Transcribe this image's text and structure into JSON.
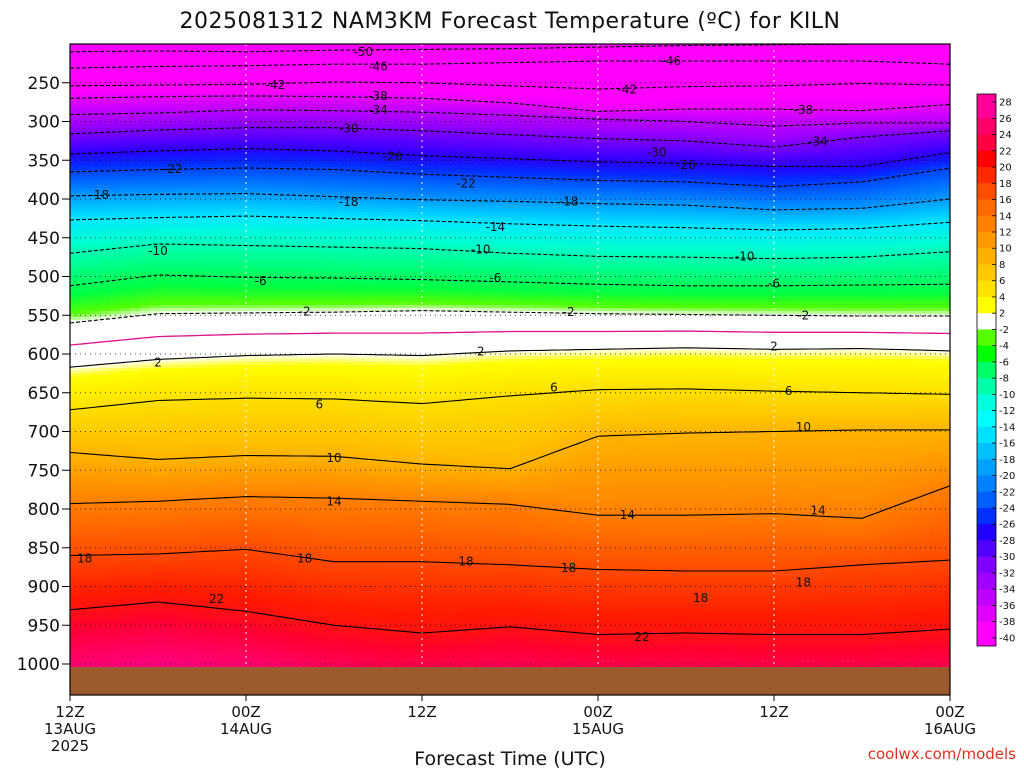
{
  "chart_data": {
    "type": "heatmap",
    "title": "2025081312 NAM3KM Forecast Temperature (ºC) for KILN",
    "xlabel": "Forecast Time (UTC)",
    "ylabel": "",
    "x_ticks": [
      {
        "h": 0,
        "l1": "12Z",
        "l2": "13AUG",
        "l3": "2025"
      },
      {
        "h": 12,
        "l1": "00Z",
        "l2": "14AUG",
        "l3": ""
      },
      {
        "h": 24,
        "l1": "12Z",
        "l2": "",
        "l3": ""
      },
      {
        "h": 36,
        "l1": "00Z",
        "l2": "15AUG",
        "l3": ""
      },
      {
        "h": 48,
        "l1": "12Z",
        "l2": "",
        "l3": ""
      },
      {
        "h": 60,
        "l1": "00Z",
        "l2": "16AUG",
        "l3": ""
      }
    ],
    "xlim_hours": [
      0,
      60
    ],
    "y_ticks": [
      250,
      300,
      350,
      400,
      450,
      500,
      550,
      600,
      650,
      700,
      750,
      800,
      850,
      900,
      950,
      1000
    ],
    "y_units": "hPa",
    "ylim_hpa": [
      200,
      1040
    ],
    "ground_top_hpa": 970,
    "colorbar_ticks": [
      28,
      26,
      24,
      22,
      20,
      18,
      16,
      14,
      12,
      10,
      8,
      6,
      4,
      2,
      -2,
      -4,
      -6,
      -8,
      -10,
      -12,
      -14,
      -16,
      -18,
      -20,
      -22,
      -24,
      -26,
      -28,
      -30,
      -32,
      -34,
      -36,
      -38,
      -40
    ],
    "colorbar_colors": [
      "#ff0099",
      "#ff0066",
      "#ff0040",
      "#ff0000",
      "#ff2a00",
      "#ff4d00",
      "#ff6a00",
      "#ff8000",
      "#ff9900",
      "#ffb000",
      "#ffc800",
      "#ffe000",
      "#ffff00",
      "#ffffff",
      "#55ff00",
      "#00ff00",
      "#00ff66",
      "#00ffaa",
      "#00ffdd",
      "#00ffff",
      "#00e0ff",
      "#00c0ff",
      "#00a0ff",
      "#0080ff",
      "#0060ff",
      "#0030ff",
      "#2000ff",
      "#5000ff",
      "#8000ff",
      "#a000ff",
      "#c000ff",
      "#e000ff",
      "#ff00ff"
    ],
    "time_hours": [
      0,
      6,
      12,
      18,
      24,
      30,
      36,
      42,
      48,
      54,
      60
    ],
    "isotherms": [
      {
        "t": -50,
        "p": [
          210,
          209,
          210,
          208,
          207,
          206,
          204,
          202,
          201,
          200,
          200
        ]
      },
      {
        "t": -46,
        "p": [
          231,
          229,
          228,
          226,
          226,
          224,
          222,
          222,
          222,
          222,
          226
        ]
      },
      {
        "t": -42,
        "p": [
          254,
          253,
          252,
          249,
          250,
          254,
          258,
          255,
          254,
          251,
          253
        ]
      },
      {
        "t": -38,
        "p": [
          270,
          268,
          267,
          268,
          270,
          276,
          287,
          284,
          284,
          286,
          278
        ]
      },
      {
        "t": -34,
        "p": [
          291,
          289,
          285,
          286,
          288,
          292,
          297,
          300,
          306,
          302,
          302
        ]
      },
      {
        "t": -30,
        "p": [
          316,
          311,
          308,
          308,
          312,
          317,
          322,
          325,
          333,
          320,
          312
        ]
      },
      {
        "t": -26,
        "p": [
          342,
          338,
          335,
          338,
          344,
          348,
          352,
          354,
          358,
          358,
          340
        ]
      },
      {
        "t": -22,
        "p": [
          365,
          362,
          360,
          362,
          368,
          372,
          376,
          378,
          384,
          378,
          360
        ]
      },
      {
        "t": -18,
        "p": [
          396,
          394,
          393,
          397,
          401,
          403,
          406,
          408,
          414,
          412,
          400
        ]
      },
      {
        "t": -14,
        "p": [
          427,
          424,
          422,
          425,
          428,
          432,
          435,
          437,
          440,
          438,
          430
        ]
      },
      {
        "t": -10,
        "p": [
          470,
          458,
          460,
          462,
          464,
          470,
          474,
          475,
          477,
          475,
          468
        ]
      },
      {
        "t": -6,
        "p": [
          512,
          498,
          501,
          502,
          504,
          507,
          510,
          512,
          512,
          511,
          510
        ]
      },
      {
        "t": -2,
        "p": [
          560,
          548,
          547,
          546,
          544,
          546,
          548,
          549,
          550,
          551,
          551
        ]
      },
      {
        "t": 2,
        "p": [
          617,
          607,
          602,
          600,
          602,
          596,
          594,
          592,
          594,
          593,
          596
        ]
      },
      {
        "t": 6,
        "p": [
          672,
          660,
          657,
          658,
          664,
          654,
          646,
          645,
          648,
          650,
          652
        ]
      },
      {
        "t": 10,
        "p": [
          727,
          736,
          731,
          732,
          742,
          748,
          706,
          702,
          700,
          698,
          698
        ]
      },
      {
        "t": 14,
        "p": [
          793,
          790,
          784,
          786,
          790,
          794,
          808,
          808,
          806,
          812,
          770
        ]
      },
      {
        "t": 18,
        "p": [
          860,
          858,
          852,
          868,
          868,
          872,
          878,
          880,
          880,
          872,
          866
        ]
      },
      {
        "t": 22,
        "p": [
          930,
          920,
          932,
          950,
          960,
          952,
          962,
          960,
          962,
          962,
          955
        ]
      }
    ],
    "contour_labels": [
      {
        "t": "-50",
        "h": 20,
        "p": 210
      },
      {
        "t": "-46",
        "h": 21,
        "p": 229
      },
      {
        "t": "-46",
        "h": 41,
        "p": 222
      },
      {
        "t": "-42",
        "h": 14,
        "p": 253
      },
      {
        "t": "-42",
        "h": 38,
        "p": 259
      },
      {
        "t": "-38",
        "h": 21,
        "p": 267
      },
      {
        "t": "-38",
        "h": 50,
        "p": 285
      },
      {
        "t": "-34",
        "h": 21,
        "p": 285
      },
      {
        "t": "-34",
        "h": 51,
        "p": 326
      },
      {
        "t": "-30",
        "h": 19,
        "p": 309
      },
      {
        "t": "-30",
        "h": 40,
        "p": 340
      },
      {
        "t": "-26",
        "h": 22,
        "p": 345
      },
      {
        "t": "-26",
        "h": 42,
        "p": 356
      },
      {
        "t": "-22",
        "h": 7,
        "p": 361
      },
      {
        "t": "-22",
        "h": 27,
        "p": 380
      },
      {
        "t": "-18",
        "h": 2,
        "p": 395
      },
      {
        "t": "-18",
        "h": 19,
        "p": 404
      },
      {
        "t": "-18",
        "h": 34,
        "p": 403
      },
      {
        "t": "-14",
        "h": 29,
        "p": 436
      },
      {
        "t": "-10",
        "h": 6,
        "p": 467
      },
      {
        "t": "-10",
        "h": 28,
        "p": 465
      },
      {
        "t": "-10",
        "h": 46,
        "p": 474
      },
      {
        "t": "-6",
        "h": 13,
        "p": 506
      },
      {
        "t": "-6",
        "h": 29,
        "p": 502
      },
      {
        "t": "-6",
        "h": 48,
        "p": 509
      },
      {
        "t": "-2",
        "h": 16,
        "p": 545
      },
      {
        "t": "-2",
        "h": 34,
        "p": 546
      },
      {
        "t": "-2",
        "h": 50,
        "p": 550
      },
      {
        "t": "2",
        "h": 6,
        "p": 611
      },
      {
        "t": "2",
        "h": 28,
        "p": 597
      },
      {
        "t": "2",
        "h": 48,
        "p": 590
      },
      {
        "t": "6",
        "h": 17,
        "p": 665
      },
      {
        "t": "6",
        "h": 33,
        "p": 643
      },
      {
        "t": "6",
        "h": 49,
        "p": 648
      },
      {
        "t": "10",
        "h": 18,
        "p": 734
      },
      {
        "t": "10",
        "h": 50,
        "p": 694
      },
      {
        "t": "14",
        "h": 18,
        "p": 790
      },
      {
        "t": "14",
        "h": 38,
        "p": 808
      },
      {
        "t": "14",
        "h": 51,
        "p": 802
      },
      {
        "t": "18",
        "h": 1,
        "p": 864
      },
      {
        "t": "18",
        "h": 16,
        "p": 864
      },
      {
        "t": "18",
        "h": 27,
        "p": 868
      },
      {
        "t": "18",
        "h": 34,
        "p": 876
      },
      {
        "t": "18",
        "h": 43,
        "p": 915
      },
      {
        "t": "18",
        "h": 50,
        "p": 895
      },
      {
        "t": "22",
        "h": 10,
        "p": 916
      },
      {
        "t": "22",
        "h": 39,
        "p": 965
      }
    ]
  },
  "credit": "coolwx.com/models"
}
